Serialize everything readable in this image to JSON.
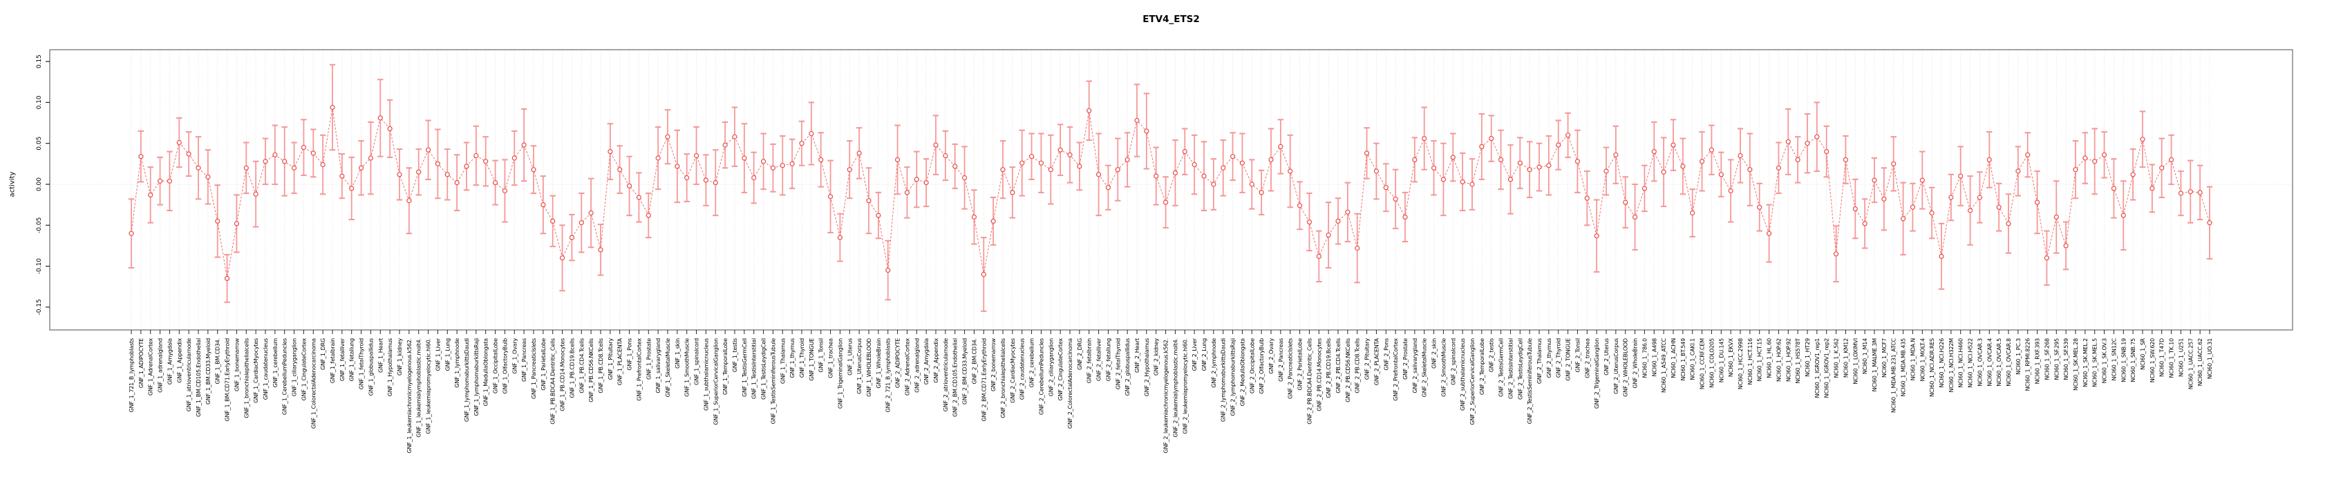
{
  "title": "ETV4_ETS2",
  "y_axis": {
    "label": "activity"
  },
  "chart_data": {
    "type": "scatter",
    "error_bars": true,
    "marker_style": "open-circle",
    "line_style": "dashed-connector",
    "title": "ETV4_ETS2",
    "xlabel": "",
    "ylabel": "activity",
    "ylim": [
      -0.178,
      0.164
    ],
    "grid": "vertical-dotted-per-category",
    "zero_line": true,
    "y_ticks": [
      0.15,
      0.1,
      0.05,
      0.0,
      -0.05,
      -0.1,
      -0.15
    ],
    "y_tick_labels": [
      "0.15",
      "0.10",
      "0.05",
      "0.00",
      "-0.05",
      "-0.10",
      "-0.15"
    ],
    "colors": {
      "error_bar": "#f59898",
      "marker": "#e84b44",
      "connector": "#f07070",
      "gridline": "#d9d9d9",
      "zero_line": "#dcdcdc",
      "box": "#8e8e8e",
      "tick": "#222222",
      "label_text": "#000000"
    },
    "categories": [
      "GNF_1_721_B_lymphoblasts",
      "GNF_1_ADIPOCYTE",
      "GNF_1_AdrenalCortex",
      "GNF_1_adrenalgland",
      "GNF_1_Amygdala",
      "GNF_1_Appendix",
      "GNF_1_atrioventricularnode",
      "GNF_1_BM.CD105.Endothelial",
      "GNF_1_BM.CD33.Myeloid",
      "GNF_1_BM.CD34.",
      "GNF_1_BM.CD71.EarlyErythroid",
      "GNF_1_bonemarrow",
      "GNF_1_bronchialepithelialcells",
      "GNF_1_CardiacMyocytes",
      "GNF_1_caudatenucleus",
      "GNF_1_cerebellum",
      "GNF_1_CerebellumPeduncles",
      "GNF_1_ciliaryganglion",
      "GNF_1_CingulateCortex",
      "GNF_1_ColorectalAdenocarcinoma",
      "GNF_1_DRG",
      "GNF_1_fetalbrain",
      "GNF_1_fetalliver",
      "GNF_1_fetallung",
      "GNF_1_fetalThyroid",
      "GNF_1_globuspallidus",
      "GNF_1_Heart",
      "GNF_1_Hypothalamus",
      "GNF_1_kidney",
      "GNF_1_leukemiachronicmyelogenous.k562.",
      "GNF_1_leukemialymphoblastic.molt4.",
      "GNF_1_leukemiapromyelocytic.hl60.",
      "GNF_1_Liver",
      "GNF_1_Lung",
      "GNF_1_lymphnode",
      "GNF_1_lymphomaburkittsDaudi",
      "GNF_1_lymphomaburkittsRaji",
      "GNF_1_MedullaOblongata",
      "GNF_1_OccipitalLobe",
      "GNF_1_OlfactoryBulb",
      "GNF_1_Ovary",
      "GNF_1_Pancreas",
      "GNF_1_PancreaticIslets",
      "GNF_1_ParietalLobe",
      "GNF_1_PB.BDCA4.Dentritic_Cells",
      "GNF_1_PB.CD14.Monocytes",
      "GNF_1_PB.CD19.Bcells",
      "GNF_1_PB.CD4.Tcells",
      "GNF_1_PB.CD56.NKCells",
      "GNF_1_PB.CD8.Tcells",
      "GNF_1_Pituitary",
      "GNF_1_PLACENTA",
      "GNF_1_Pons",
      "GNF_1_PrefrontalCortex",
      "GNF_1_Prostate",
      "GNF_1_salivarygland",
      "GNF_1_SkeletalMuscle",
      "GNF_1_skin",
      "GNF_1_SmoothMuscle",
      "GNF_1_spinalcord",
      "GNF_1_subthalamicnucleus",
      "GNF_1_SuperiorCervicalGanglion",
      "GNF_1_TemporalLobe",
      "GNF_1_testis",
      "GNF_1_TestisGermCell",
      "GNF_1_TestisInterstitial",
      "GNF_1_TestisLeydigCell",
      "GNF_1_TestisSeminiferousTubule",
      "GNF_1_Thalamus",
      "GNF_1_thymus",
      "GNF_1_Thyroid",
      "GNF_1_TONGUE",
      "GNF_1_Tonsil",
      "GNF_1_trachea",
      "GNF_1_TrigeminalGanglion",
      "GNF_1_Uterus",
      "GNF_1_UterusCorpus",
      "GNF_1_WHOLEBLOOD",
      "GNF_1_WholeBrain",
      "GNF_2_721_B_lymphoblasts",
      "GNF_2_ADIPOCYTE",
      "GNF_2_AdrenalCortex",
      "GNF_2_adrenalgland",
      "GNF_2_Amygdala",
      "GNF_2_Appendix",
      "GNF_2_atrioventricularnode",
      "GNF_2_BM.CD105.Endothelial",
      "GNF_2_BM.CD33.Myeloid",
      "GNF_2_BM.CD34.",
      "GNF_2_BM.CD71.EarlyErythroid",
      "GNF_2_bonemarrow",
      "GNF_2_bronchialepithelialcells",
      "GNF_2_CardiacMyocytes",
      "GNF_2_caudatenucleus",
      "GNF_2_cerebellum",
      "GNF_2_CerebellumPeduncles",
      "GNF_2_ciliaryganglion",
      "GNF_2_CingulateCortex",
      "GNF_2_ColorectalAdenocarcinoma",
      "GNF_2_DRG",
      "GNF_2_fetalbrain",
      "GNF_2_fetalliver",
      "GNF_2_fetallung",
      "GNF_2_fetalThyroid",
      "GNF_2_globuspallidus",
      "GNF_2_Heart",
      "GNF_2_Hypothalamus",
      "GNF_2_kidney",
      "GNF_2_leukemiachronicmyelogenous.k562.",
      "GNF_2_leukemialymphoblastic.molt4.",
      "GNF_2_leukemiapromyelocytic.hl60.",
      "GNF_2_Liver",
      "GNF_2_Lung",
      "GNF_2_lymphnode",
      "GNF_2_lymphomaburkittsDaudi",
      "GNF_2_lymphomaburkittsRaji",
      "GNF_2_MedullaOblongata",
      "GNF_2_OccipitalLobe",
      "GNF_2_OlfactoryBulb",
      "GNF_2_Ovary",
      "GNF_2_Pancreas",
      "GNF_2_PancreaticIslets",
      "GNF_2_ParietalLobe",
      "GNF_2_PB.BDCA4.Dentritic_Cells",
      "GNF_2_PB.CD14.Monocytes",
      "GNF_2_PB.CD19.Bcells",
      "GNF_2_PB.CD4.Tcells",
      "GNF_2_PB.CD56.NKCells",
      "GNF_2_PB.CD8.Tcells",
      "GNF_2_Pituitary",
      "GNF_2_PLACENTA",
      "GNF_2_Pons",
      "GNF_2_PrefrontalCortex",
      "GNF_2_Prostate",
      "GNF_2_salivarygland",
      "GNF_2_SkeletalMuscle",
      "GNF_2_skin",
      "GNF_2_SmoothMuscle",
      "GNF_2_spinalcord",
      "GNF_2_subthalamicnucleus",
      "GNF_2_SuperiorCervicalGanglion",
      "GNF_2_TemporalLobe",
      "GNF_2_testis",
      "GNF_2_TestisGermCell",
      "GNF_2_TestisInterstitial",
      "GNF_2_TestisLeydigCell",
      "GNF_2_TestisSeminiferousTubule",
      "GNF_2_Thalamus",
      "GNF_2_thymus",
      "GNF_2_Thyroid",
      "GNF_2_TONGUE",
      "GNF_2_Tonsil",
      "GNF_2_trachea",
      "GNF_2_TrigeminalGanglion",
      "GNF_2_Uterus",
      "GNF_2_UterusCorpus",
      "GNF_2_WHOLEBLOOD",
      "GNF_2_WholeBrain",
      "NCI60_1_786.0",
      "NCI60_1_A498",
      "NCI60_1_A549_ATCC",
      "NCI60_1_ACHN",
      "NCI60_1_BT.549",
      "NCI60_1_CAKI.1",
      "NCI60_1_CCRF.CEM",
      "NCI60_1_COLO205",
      "NCI60_1_DU.145",
      "NCI60_1_EKVX",
      "NCI60_1_HCC.2998",
      "NCI60_1_HCT.116",
      "NCI60_1_HCT.15",
      "NCI60_1_HL.60",
      "NCI60_1_HOP.62",
      "NCI60_1_HOP.92",
      "NCI60_1_HS578T",
      "NCI60_1_HT29",
      "NCI60_1_IGROV1_rep1",
      "NCI60_1_IGROV1_rep2",
      "NCI60_1_K.562",
      "NCI60_1_KM12",
      "NCI60_1_LOXIMVI",
      "NCI60_1_M14",
      "NCI60_1_MALME.3M",
      "NCI60_1_MCF7",
      "NCI60_1_MDA.MB.231_ATCC",
      "NCI60_1_MDA.MB.435",
      "NCI60_1_MDA.N",
      "NCI60_1_MOLT.4",
      "NCI60_1_NCI.ADR.RES",
      "NCI60_1_NCI.H226",
      "NCI60_1_NCI.H322M",
      "NCI60_1_NCI.H460",
      "NCI60_1_NCI.H522",
      "NCI60_1_OVCAR.3",
      "NCI60_1_OVCAR.4",
      "NCI60_1_OVCAR.5",
      "NCI60_1_OVCAR.8",
      "NCI60_1_PC.3",
      "NCI60_1_RPMI.8226",
      "NCI60_1_RXF.393",
      "NCI60_1_SF.268",
      "NCI60_1_SF.295",
      "NCI60_1_SF.539",
      "NCI60_1_SK.MEL.28",
      "NCI60_1_SK.MEL.2",
      "NCI60_1_SK.MEL.5",
      "NCI60_1_SK.OV.3",
      "NCI60_1_SN12C",
      "NCI60_1_SNB.19",
      "NCI60_1_SNB.75",
      "NCI60_1_SR",
      "NCI60_1_SW.620",
      "NCI60_1_T47D",
      "NCI60_1_TK.10",
      "NCI60_1_U251",
      "NCI60_1_UACC.257",
      "NCI60_1_UACC.62",
      "NCI60_1_UO.31"
    ],
    "values": [
      -0.06,
      0.034,
      -0.013,
      0.004,
      0.004,
      0.051,
      0.037,
      0.02,
      0.009,
      -0.045,
      -0.115,
      -0.048,
      0.02,
      -0.012,
      0.028,
      0.036,
      0.028,
      0.02,
      0.045,
      0.038,
      0.024,
      0.094,
      0.01,
      -0.005,
      0.02,
      0.032,
      0.081,
      0.068,
      0.012,
      -0.02,
      0.015,
      0.042,
      0.025,
      0.012,
      0.002,
      0.022,
      0.035,
      0.028,
      0.002,
      -0.008,
      0.032,
      0.048,
      0.018,
      -0.025,
      -0.045,
      -0.09,
      -0.065,
      -0.047,
      -0.035,
      -0.08,
      0.04,
      0.018,
      -0.002,
      -0.016,
      -0.038,
      0.032,
      0.058,
      0.022,
      0.008,
      0.035,
      0.005,
      0.002,
      0.048,
      0.058,
      0.032,
      0.008,
      0.028,
      0.02,
      0.023,
      0.025,
      0.05,
      0.062,
      0.03,
      -0.015,
      -0.065,
      0.018,
      0.038,
      -0.02,
      -0.038,
      -0.105,
      0.03,
      -0.01,
      0.006,
      0.002,
      0.048,
      0.035,
      0.022,
      0.008,
      -0.04,
      -0.11,
      -0.045,
      0.018,
      -0.01,
      0.026,
      0.034,
      0.026,
      0.018,
      0.042,
      0.036,
      0.022,
      0.09,
      0.012,
      -0.004,
      0.018,
      0.03,
      0.078,
      0.065,
      0.01,
      -0.022,
      0.014,
      0.04,
      0.024,
      0.01,
      0.0,
      0.02,
      0.034,
      0.026,
      0.0,
      -0.01,
      0.03,
      0.046,
      0.016,
      -0.026,
      -0.046,
      -0.088,
      -0.062,
      -0.045,
      -0.034,
      -0.078,
      0.038,
      0.016,
      -0.004,
      -0.018,
      -0.04,
      0.03,
      0.056,
      0.02,
      0.006,
      0.033,
      0.003,
      0.0,
      0.046,
      0.056,
      0.03,
      0.006,
      0.026,
      0.018,
      0.021,
      0.023,
      0.048,
      0.06,
      0.028,
      -0.017,
      -0.063,
      0.016,
      0.036,
      -0.022,
      -0.04,
      -0.005,
      0.04,
      0.015,
      0.048,
      0.022,
      -0.035,
      0.028,
      0.042,
      0.012,
      -0.008,
      0.035,
      0.018,
      -0.028,
      -0.06,
      0.02,
      0.052,
      0.03,
      0.05,
      0.058,
      0.04,
      -0.085,
      0.03,
      -0.03,
      -0.048,
      0.005,
      -0.018,
      0.025,
      -0.042,
      -0.028,
      0.005,
      -0.035,
      -0.088,
      -0.016,
      0.01,
      -0.032,
      -0.016,
      0.03,
      -0.028,
      -0.048,
      0.016,
      0.036,
      -0.022,
      -0.09,
      -0.04,
      -0.075,
      0.018,
      0.032,
      0.028,
      0.036,
      -0.005,
      -0.038,
      0.012,
      0.055,
      -0.005,
      0.02,
      0.03,
      -0.011,
      -0.009,
      -0.01,
      -0.047
    ],
    "errors": [
      0.042,
      0.031,
      0.034,
      0.029,
      0.036,
      0.03,
      0.027,
      0.038,
      0.033,
      0.044,
      0.029,
      0.035,
      0.031,
      0.04,
      0.028,
      0.036,
      0.042,
      0.031,
      0.034,
      0.029,
      0.036,
      0.052,
      0.027,
      0.038,
      0.033,
      0.044,
      0.047,
      0.035,
      0.031,
      0.04,
      0.028,
      0.036,
      0.042,
      0.031,
      0.034,
      0.029,
      0.036,
      0.03,
      0.027,
      0.038,
      0.033,
      0.044,
      0.029,
      0.035,
      0.031,
      0.04,
      0.028,
      0.036,
      0.042,
      0.031,
      0.034,
      0.029,
      0.036,
      0.03,
      0.027,
      0.038,
      0.033,
      0.044,
      0.029,
      0.035,
      0.031,
      0.04,
      0.028,
      0.036,
      0.042,
      0.031,
      0.034,
      0.029,
      0.036,
      0.03,
      0.027,
      0.038,
      0.033,
      0.044,
      0.029,
      0.035,
      0.031,
      0.04,
      0.028,
      0.036,
      0.042,
      0.031,
      0.034,
      0.029,
      0.036,
      0.03,
      0.027,
      0.038,
      0.033,
      0.045,
      0.029,
      0.035,
      0.031,
      0.04,
      0.028,
      0.036,
      0.042,
      0.031,
      0.034,
      0.029,
      0.036,
      0.05,
      0.027,
      0.038,
      0.033,
      0.044,
      0.046,
      0.035,
      0.031,
      0.04,
      0.028,
      0.036,
      0.042,
      0.031,
      0.034,
      0.029,
      0.036,
      0.03,
      0.027,
      0.038,
      0.033,
      0.044,
      0.029,
      0.035,
      0.031,
      0.04,
      0.028,
      0.036,
      0.042,
      0.031,
      0.034,
      0.029,
      0.036,
      0.03,
      0.027,
      0.038,
      0.033,
      0.044,
      0.029,
      0.035,
      0.031,
      0.04,
      0.028,
      0.036,
      0.042,
      0.031,
      0.034,
      0.029,
      0.036,
      0.03,
      0.027,
      0.038,
      0.033,
      0.044,
      0.029,
      0.035,
      0.031,
      0.04,
      0.028,
      0.036,
      0.042,
      0.031,
      0.034,
      0.029,
      0.036,
      0.03,
      0.027,
      0.038,
      0.033,
      0.044,
      0.029,
      0.035,
      0.031,
      0.04,
      0.028,
      0.036,
      0.042,
      0.031,
      0.034,
      0.029,
      0.036,
      0.03,
      0.027,
      0.038,
      0.033,
      0.044,
      0.029,
      0.035,
      0.031,
      0.04,
      0.028,
      0.036,
      0.042,
      0.031,
      0.034,
      0.029,
      0.036,
      0.03,
      0.027,
      0.038,
      0.033,
      0.044,
      0.029,
      0.035,
      0.031,
      0.04,
      0.028,
      0.036,
      0.042,
      0.031,
      0.034,
      0.029,
      0.036,
      0.03,
      0.027,
      0.038,
      0.033,
      0.044
    ]
  }
}
